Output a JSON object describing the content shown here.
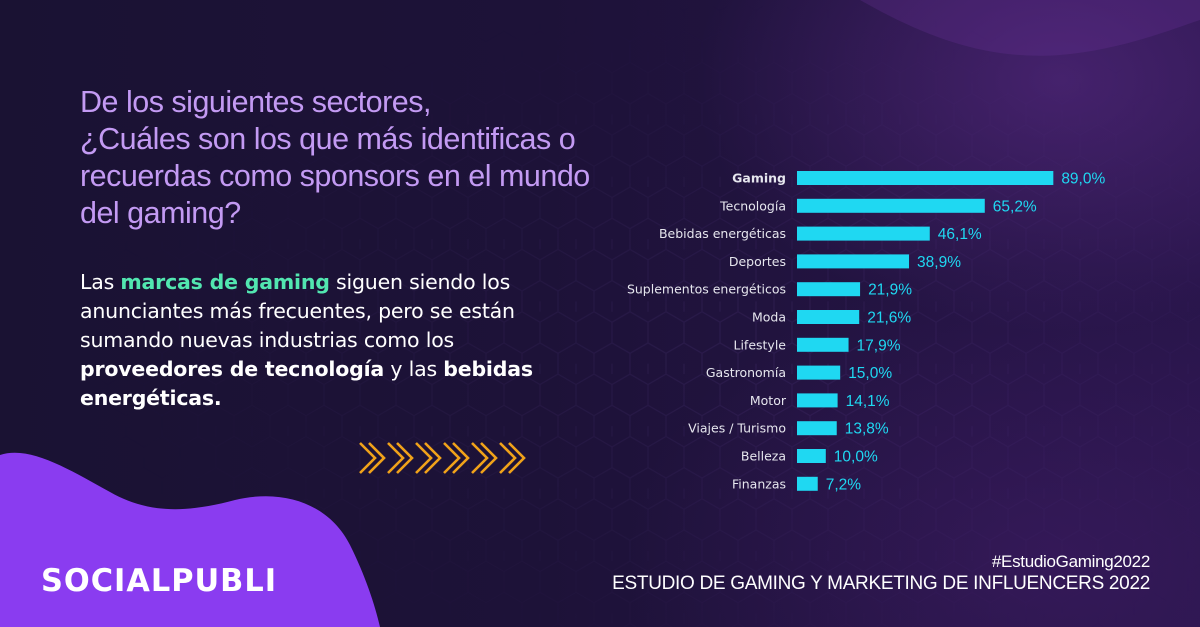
{
  "question": {
    "lines": [
      "De los siguientes sectores,",
      "¿Cuáles son los que más identificas o",
      "recuerdas como sponsors en el mundo",
      "del gaming?"
    ]
  },
  "body": {
    "line1_hl": "marcas de gaming",
    "line1_a": "Las ",
    "line1_b": " siguen siendo los",
    "line2": "anunciantes más frecuentes, pero se están",
    "line3": "sumando nuevas industrias como los",
    "line4_bold": "proveedores de tecnología",
    "line4_mid": " y las ",
    "line4_bold2": "bebidas",
    "line5_bold": "energéticas."
  },
  "brand": {
    "logo": "SOCIALPUBLI"
  },
  "footer": {
    "hashtag": "#EstudioGaming2022",
    "study": "ESTUDIO DE GAMING Y MARKETING DE INFLUENCERS 2022"
  },
  "colors": {
    "bar": "#1fd8f2",
    "value_label": "#1fd8f2",
    "category_label": "#e6e6ee",
    "question": "#c39af3",
    "highlight": "#52e6b0",
    "blob": "#8a3cf0",
    "chevron": "#f0a21a"
  },
  "chart_data": {
    "type": "bar",
    "orientation": "horizontal",
    "categories": [
      "Gaming",
      "Tecnología",
      "Bebidas energéticas",
      "Deportes",
      "Suplementos energéticos",
      "Moda",
      "Lifestyle",
      "Gastronomía",
      "Motor",
      "Viajes / Turismo",
      "Belleza",
      "Finanzas"
    ],
    "values": [
      89.0,
      65.2,
      46.1,
      38.9,
      21.9,
      21.6,
      17.9,
      15.0,
      14.1,
      13.8,
      10.0,
      7.2
    ],
    "value_labels": [
      "89,0%",
      "65,2%",
      "46,1%",
      "38,9%",
      "21,9%",
      "21,6%",
      "17,9%",
      "15,0%",
      "14,1%",
      "13,8%",
      "10,0%",
      "7,2%"
    ],
    "xlim": [
      0,
      100
    ],
    "grid": false,
    "legend": "none"
  }
}
